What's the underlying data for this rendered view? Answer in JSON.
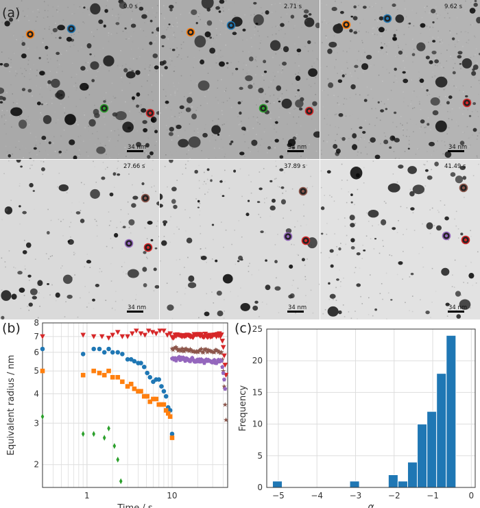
{
  "panel_labels": {
    "a": "(a)",
    "b": "(b)",
    "c": "(c)"
  },
  "tem_frames": [
    {
      "time": "0.0 s",
      "scale": "34 nm",
      "bg": "#a9a9a9",
      "style": "dark"
    },
    {
      "time": "2.71 s",
      "scale": "34 nm",
      "bg": "#acacac",
      "style": "dark"
    },
    {
      "time": "9.62 s",
      "scale": "34 nm",
      "bg": "#b4b4b4",
      "style": "dark"
    },
    {
      "time": "27.66 s",
      "scale": "34 nm",
      "bg": "#dadada",
      "style": "light"
    },
    {
      "time": "37.89 s",
      "scale": "34 nm",
      "bg": "#dcdcdc",
      "style": "light"
    },
    {
      "time": "41.49 s",
      "scale": "34 nm",
      "bg": "#e2e2e2",
      "style": "light"
    }
  ],
  "colors": {
    "blue": "#1f77b4",
    "orange": "#ff7f0e",
    "green": "#2ca02c",
    "red": "#d62728",
    "purple": "#9467bd",
    "brown": "#8c564b"
  },
  "chart_data": [
    {
      "type": "scatter",
      "panel": "(b)",
      "xlabel": "Time / s",
      "ylabel": "Equivalent radius / nm",
      "xscale": "log",
      "yscale": "log",
      "xlim": [
        0.3,
        45
      ],
      "ylim": [
        1.6,
        8
      ],
      "xticks": [
        {
          "v": 1,
          "label": "1"
        },
        {
          "v": 10,
          "label": "10"
        }
      ],
      "yticks": [
        {
          "v": 2,
          "label": "2"
        },
        {
          "v": 3,
          "label": "3"
        },
        {
          "v": 4,
          "label": "4"
        },
        {
          "v": 5,
          "label": "5"
        },
        {
          "v": 6,
          "label": "6"
        },
        {
          "v": 7,
          "label": "7"
        },
        {
          "v": 8,
          "label": "8"
        }
      ],
      "grid": true,
      "series": [
        {
          "color": "#d62728",
          "marker": "triangle-down",
          "x": [
            0.3,
            0.9,
            1.2,
            1.5,
            1.8,
            2.0,
            2.3,
            2.6,
            3.0,
            3.4,
            3.8,
            4.3,
            4.8,
            5.3,
            5.9,
            6.5,
            7.2,
            8.0,
            8.8,
            9.5
          ],
          "y": [
            7.0,
            7.1,
            7.0,
            7.0,
            6.9,
            7.1,
            7.3,
            7.0,
            7.0,
            7.2,
            7.4,
            7.2,
            7.1,
            7.4,
            7.3,
            7.2,
            7.4,
            7.4,
            7.1,
            7.2
          ]
        },
        {
          "color": "#d62728",
          "marker": "triangle-down",
          "x_range": [
            10,
            38
          ],
          "y_start": 7.0,
          "y_end": 7.1,
          "count": 50,
          "tail": [
            [
              39,
              6.7
            ],
            [
              40,
              6.3
            ],
            [
              41,
              5.8
            ],
            [
              42,
              5.3
            ],
            [
              43,
              4.8
            ]
          ]
        },
        {
          "color": "#1f77b4",
          "marker": "circle",
          "x": [
            0.3,
            0.9,
            1.2,
            1.4,
            1.6,
            1.8,
            2.0,
            2.3,
            2.6,
            3.0,
            3.3,
            3.6,
            4.0,
            4.3,
            4.7,
            5.1,
            5.5,
            6.0,
            6.5,
            7.0,
            7.5,
            8.0,
            8.5,
            9.0,
            9.5,
            10.0
          ],
          "y": [
            6.2,
            5.9,
            6.2,
            6.2,
            6.0,
            6.2,
            6.0,
            6.0,
            5.9,
            5.6,
            5.6,
            5.5,
            5.4,
            5.4,
            5.2,
            4.9,
            4.7,
            4.5,
            4.6,
            4.6,
            4.3,
            4.1,
            3.9,
            3.5,
            3.4,
            2.7
          ]
        },
        {
          "color": "#ff7f0e",
          "marker": "square",
          "x": [
            0.3,
            0.9,
            1.2,
            1.4,
            1.6,
            1.8,
            2.0,
            2.3,
            2.6,
            3.0,
            3.3,
            3.6,
            4.0,
            4.3,
            4.7,
            5.1,
            5.5,
            6.0,
            6.5,
            7.0,
            7.5,
            8.0,
            8.5,
            9.0,
            9.5,
            10.0
          ],
          "y": [
            5.0,
            4.8,
            5.0,
            4.9,
            4.8,
            5.0,
            4.7,
            4.7,
            4.5,
            4.3,
            4.4,
            4.2,
            4.1,
            4.1,
            3.9,
            3.9,
            3.7,
            3.8,
            3.8,
            3.6,
            3.6,
            3.6,
            3.4,
            3.3,
            3.2,
            2.6
          ]
        },
        {
          "color": "#2ca02c",
          "marker": "diamond",
          "x": [
            0.3,
            0.9,
            1.2,
            1.6,
            1.8,
            2.1,
            2.3,
            2.5
          ],
          "y": [
            3.2,
            2.7,
            2.7,
            2.6,
            2.85,
            2.4,
            2.1,
            1.7
          ]
        },
        {
          "color": "#8c564b",
          "marker": "star",
          "x_range": [
            10,
            38
          ],
          "y_start": 6.25,
          "y_end": 6.0,
          "count": 50,
          "tail": [
            [
              39,
              5.6
            ],
            [
              40,
              5.0
            ],
            [
              41,
              4.3
            ],
            [
              42,
              3.6
            ],
            [
              43,
              3.1
            ]
          ]
        },
        {
          "color": "#9467bd",
          "marker": "pentagon",
          "x_range": [
            10,
            38
          ],
          "y_start": 5.65,
          "y_end": 5.45,
          "count": 50,
          "tail": [
            [
              39,
              5.2
            ],
            [
              40,
              4.9
            ],
            [
              41,
              4.6
            ],
            [
              42,
              4.2
            ]
          ]
        }
      ]
    },
    {
      "type": "bar",
      "panel": "(c)",
      "xlabel": "α",
      "ylabel": "Frequency",
      "xlim": [
        -5.3,
        0.1
      ],
      "ylim": [
        0,
        25
      ],
      "xticks": [
        {
          "v": -5,
          "label": "−5"
        },
        {
          "v": -4,
          "label": "−4"
        },
        {
          "v": -3,
          "label": "−3"
        },
        {
          "v": -2,
          "label": "−2"
        },
        {
          "v": -1,
          "label": "−1"
        },
        {
          "v": 0,
          "label": "0"
        }
      ],
      "yticks": [
        {
          "v": 0,
          "label": "0"
        },
        {
          "v": 5,
          "label": "5"
        },
        {
          "v": 10,
          "label": "10"
        },
        {
          "v": 15,
          "label": "15"
        },
        {
          "v": 20,
          "label": "20"
        },
        {
          "v": 25,
          "label": "25"
        }
      ],
      "grid": true,
      "color": "#1f77b4",
      "bin_width": 0.25,
      "bins": [
        {
          "left": -5.15,
          "count": 1
        },
        {
          "left": -3.15,
          "count": 1
        },
        {
          "left": -2.15,
          "count": 2
        },
        {
          "left": -1.9,
          "count": 1
        },
        {
          "left": -1.65,
          "count": 4
        },
        {
          "left": -1.4,
          "count": 10
        },
        {
          "left": -1.15,
          "count": 12
        },
        {
          "left": -0.9,
          "count": 18
        },
        {
          "left": -0.65,
          "count": 24
        }
      ]
    }
  ]
}
